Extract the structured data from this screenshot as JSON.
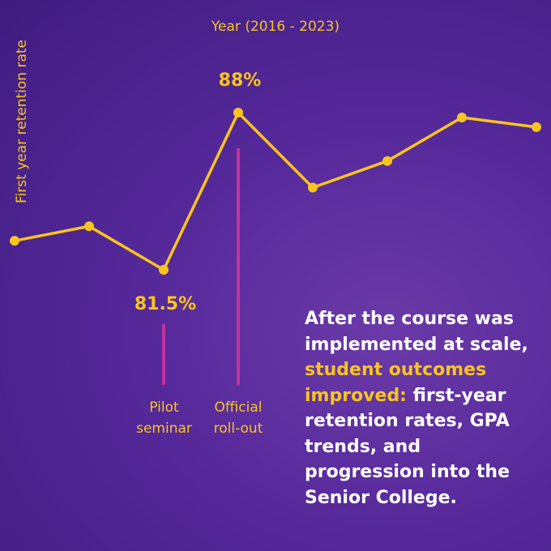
{
  "chart_data": {
    "type": "line",
    "x_label": "Year (2016 - 2023)",
    "y_label": "First year retention rate",
    "categories": [
      null,
      null,
      null,
      null,
      null,
      null,
      null,
      null
    ],
    "series": [
      {
        "name": null,
        "color": "#f7c51e",
        "values": [
          82.7,
          83.3,
          81.5,
          88,
          84.9,
          86.0,
          87.8,
          87.4
        ],
        "value_labels": [
          null,
          null,
          "81.5%",
          "88%",
          null,
          null,
          null,
          null
        ]
      }
    ],
    "annotations": [
      {
        "category": 2,
        "text": "Pilot seminar",
        "color": "#c2339e"
      },
      {
        "category": 3,
        "text": "Official roll-out",
        "color": "#c2339e"
      }
    ]
  },
  "caption": {
    "before": "After the course was implemented at scale, ",
    "highlight": "student outcomes improved:",
    "after": " first-year retention rates, GPA trends, and progression into the Senior College."
  }
}
